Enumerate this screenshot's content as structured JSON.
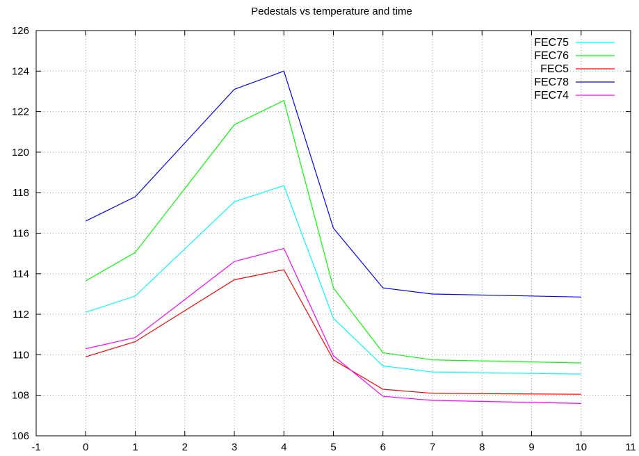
{
  "chart_data": {
    "type": "line",
    "title": "Pedestals vs temperature and time",
    "xlabel": "",
    "ylabel": "",
    "xlim": [
      -1,
      11
    ],
    "ylim": [
      106,
      126
    ],
    "xticks": [
      -1,
      0,
      1,
      2,
      3,
      4,
      5,
      6,
      7,
      8,
      9,
      10,
      11
    ],
    "yticks": [
      106,
      108,
      110,
      112,
      114,
      116,
      118,
      120,
      122,
      124,
      126
    ],
    "grid": true,
    "legend_position": "top-right",
    "x": [
      0,
      1,
      3,
      4,
      5,
      6,
      7,
      10
    ],
    "series": [
      {
        "name": "FEC75",
        "color": "#00ffff",
        "values": [
          112.1,
          112.9,
          117.55,
          118.35,
          111.8,
          109.45,
          109.15,
          109.05
        ]
      },
      {
        "name": "FEC76",
        "color": "#00ff00",
        "values": [
          113.65,
          115.05,
          121.35,
          122.55,
          113.3,
          110.1,
          109.75,
          109.6
        ]
      },
      {
        "name": "FEC5",
        "color": "#ff0000",
        "values": [
          109.9,
          110.65,
          113.7,
          114.2,
          109.75,
          108.3,
          108.1,
          108.05
        ]
      },
      {
        "name": "FEC78",
        "color": "#0000ff",
        "values": [
          116.6,
          117.8,
          123.1,
          124.0,
          116.25,
          113.3,
          113.0,
          112.85
        ]
      },
      {
        "name": "FEC74",
        "color": "#ff00ff",
        "values": [
          110.3,
          110.85,
          114.6,
          115.25,
          109.95,
          107.95,
          107.75,
          107.6
        ]
      }
    ]
  }
}
